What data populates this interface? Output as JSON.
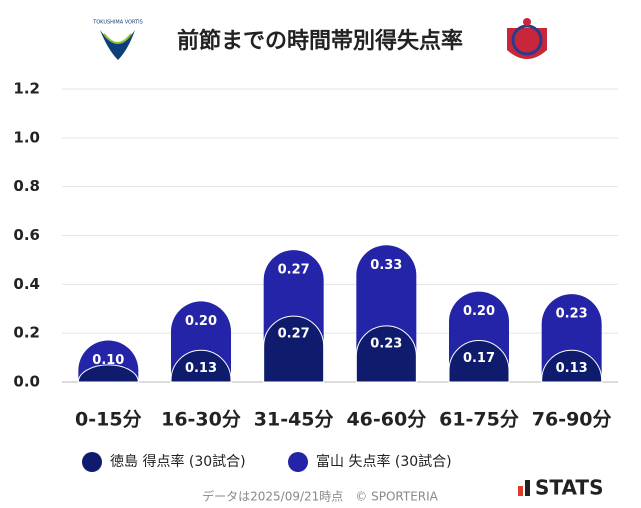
{
  "chart_data": {
    "type": "stacked_bar",
    "title": "前節までの時間帯別得失点率",
    "categories": [
      "0-15分",
      "16-30分",
      "31-45分",
      "46-60分",
      "61-75分",
      "76-90分"
    ],
    "series": [
      {
        "name": "徳島 得点率 (30試合)",
        "color": "#0f1c6e",
        "values": [
          0.07,
          0.13,
          0.27,
          0.23,
          0.17,
          0.13
        ],
        "value_labels": [
          null,
          "0.13",
          "0.27",
          "0.23",
          "0.17",
          "0.13"
        ]
      },
      {
        "name": "富山 失点率 (30試合)",
        "color": "#2424a8",
        "values": [
          0.1,
          0.2,
          0.27,
          0.33,
          0.2,
          0.23
        ],
        "value_labels": [
          "0.10",
          "0.20",
          "0.27",
          "0.33",
          "0.20",
          "0.23"
        ]
      }
    ],
    "ylim": [
      0,
      1.2
    ],
    "yticks": [
      {
        "value": 0,
        "label": "0.0"
      },
      {
        "value": 0.2,
        "label": "0.2"
      },
      {
        "value": 0.4,
        "label": "0.4"
      },
      {
        "value": 0.6,
        "label": "0.6"
      },
      {
        "value": 0.8,
        "label": "0.8"
      },
      {
        "value": 1,
        "label": "1.0"
      },
      {
        "value": 1.2,
        "label": "1.2"
      }
    ],
    "grid": true,
    "footer": "データは2025/09/21時点　© SPORTERIA",
    "logo_text": "STATS",
    "team_logo_text": "TOKUSHIMA VORTIS"
  }
}
